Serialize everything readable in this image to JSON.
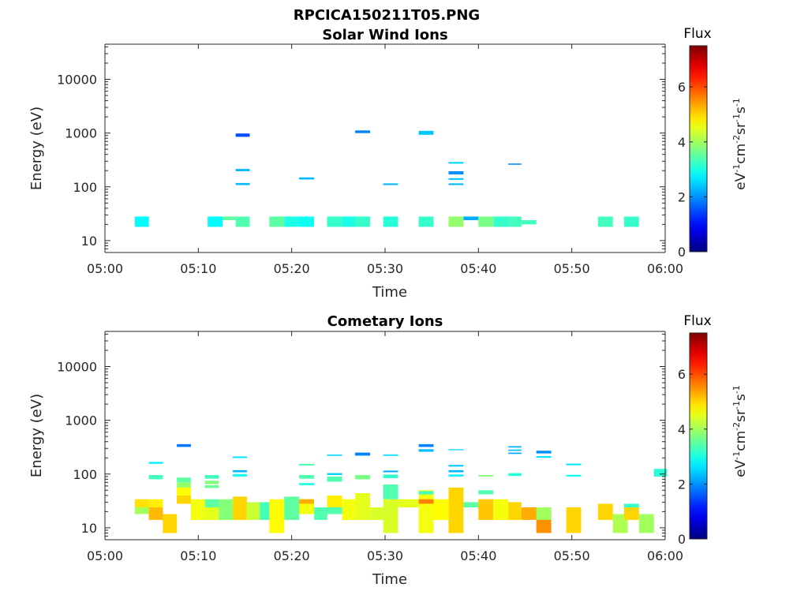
{
  "figure": {
    "title": "RPCICA150211T05.PNG"
  },
  "chart_data": [
    {
      "type": "heatmap",
      "title": "Solar Wind Ions",
      "xlabel": "Time",
      "ylabel": "Energy (eV)",
      "x_ticks": [
        "05:00",
        "05:10",
        "05:20",
        "05:30",
        "05:40",
        "05:50",
        "06:00"
      ],
      "y_ticks": [
        "10",
        "100",
        "1000",
        "10000"
      ],
      "xlim_minutes": [
        0,
        60
      ],
      "ylim": [
        6,
        45000
      ],
      "yscale": "log",
      "colorbar": {
        "title": "Flux",
        "units": "eV-1cm-2sr-1s-1",
        "range": [
          0,
          7.5
        ],
        "ticks": [
          "0",
          "2",
          "4",
          "6"
        ],
        "colormap": "jet"
      },
      "cells": [
        [
          3.2,
          4.7,
          18,
          28,
          2.8
        ],
        [
          11.0,
          12.6,
          18,
          28,
          2.8
        ],
        [
          12.6,
          14.0,
          24,
          28,
          3.5
        ],
        [
          14.0,
          15.5,
          18,
          28,
          3.4
        ],
        [
          17.6,
          19.2,
          18,
          28,
          3.5
        ],
        [
          19.2,
          20.8,
          18,
          28,
          3.0
        ],
        [
          20.8,
          22.4,
          18,
          28,
          2.9
        ],
        [
          23.8,
          25.4,
          18,
          28,
          3.2
        ],
        [
          25.4,
          26.8,
          18,
          28,
          3.0
        ],
        [
          26.8,
          28.4,
          18,
          28,
          3.2
        ],
        [
          29.8,
          31.4,
          18,
          28,
          3.1
        ],
        [
          33.6,
          35.2,
          18,
          28,
          3.2
        ],
        [
          36.8,
          38.4,
          18,
          28,
          3.9
        ],
        [
          38.4,
          40.0,
          24,
          28,
          2.2
        ],
        [
          40.0,
          41.6,
          18,
          28,
          3.7
        ],
        [
          41.6,
          43.2,
          18,
          28,
          3.2
        ],
        [
          43.2,
          44.6,
          18,
          28,
          3.3
        ],
        [
          44.6,
          46.2,
          20,
          24,
          3.3
        ],
        [
          52.8,
          54.4,
          18,
          28,
          3.3
        ],
        [
          55.6,
          57.2,
          18,
          28,
          3.2
        ],
        [
          14.0,
          15.5,
          850,
          980,
          1.5
        ],
        [
          14.0,
          15.5,
          195,
          215,
          2.3
        ],
        [
          14.0,
          15.5,
          108,
          118,
          2.3
        ],
        [
          20.8,
          22.4,
          137,
          150,
          2.3
        ],
        [
          26.8,
          28.4,
          1000,
          1120,
          1.9
        ],
        [
          29.8,
          31.4,
          108,
          116,
          2.3
        ],
        [
          33.6,
          35.2,
          930,
          1100,
          2.4
        ],
        [
          36.8,
          38.4,
          270,
          290,
          2.5
        ],
        [
          36.8,
          38.4,
          170,
          195,
          2.0
        ],
        [
          36.8,
          38.4,
          135,
          145,
          2.4
        ],
        [
          36.8,
          38.4,
          108,
          116,
          2.3
        ],
        [
          43.2,
          44.6,
          258,
          272,
          2.0
        ]
      ]
    },
    {
      "type": "heatmap",
      "title": "Cometary Ions",
      "xlabel": "Time",
      "ylabel": "Energy (eV)",
      "x_ticks": [
        "05:00",
        "05:10",
        "05:20",
        "05:30",
        "05:40",
        "05:50",
        "06:00"
      ],
      "y_ticks": [
        "10",
        "100",
        "1000",
        "10000"
      ],
      "xlim_minutes": [
        0,
        60
      ],
      "ylim": [
        6,
        45000
      ],
      "yscale": "log",
      "colorbar": {
        "title": "Flux",
        "units": "eV-1cm-2sr-1s-1",
        "range": [
          0,
          7.5
        ],
        "ticks": [
          "0",
          "2",
          "4",
          "6"
        ],
        "colormap": "jet"
      },
      "cells": [
        [
          3.2,
          4.7,
          18,
          24,
          4.0
        ],
        [
          3.2,
          4.7,
          24,
          34,
          4.9
        ],
        [
          4.7,
          6.2,
          24,
          34,
          4.8
        ],
        [
          4.7,
          6.2,
          14,
          24,
          5.2
        ],
        [
          6.2,
          7.7,
          8,
          18,
          5.0
        ],
        [
          7.7,
          9.2,
          28,
          40,
          5.0
        ],
        [
          7.7,
          9.2,
          40,
          56,
          4.7
        ],
        [
          7.7,
          9.2,
          56,
          70,
          3.9
        ],
        [
          7.7,
          9.2,
          70,
          86,
          3.5
        ],
        [
          9.2,
          10.7,
          14,
          34,
          4.6
        ],
        [
          10.7,
          12.2,
          14,
          24,
          4.5
        ],
        [
          10.7,
          12.2,
          24,
          34,
          3.5
        ],
        [
          12.2,
          13.7,
          14,
          34,
          3.8
        ],
        [
          13.7,
          15.2,
          14,
          38,
          5.0
        ],
        [
          15.2,
          16.6,
          14,
          30,
          4.3
        ],
        [
          16.6,
          18.1,
          14,
          30,
          3.3
        ],
        [
          17.6,
          19.2,
          8,
          34,
          4.7
        ],
        [
          19.2,
          20.8,
          14,
          38,
          3.5
        ],
        [
          20.8,
          22.4,
          18,
          34,
          4.6
        ],
        [
          20.8,
          22.4,
          28,
          34,
          5.3
        ],
        [
          22.4,
          23.8,
          14,
          24,
          3.4
        ],
        [
          23.8,
          25.4,
          18,
          24,
          3.4
        ],
        [
          23.8,
          25.4,
          24,
          40,
          4.8
        ],
        [
          25.4,
          26.8,
          14,
          34,
          4.6
        ],
        [
          26.8,
          28.4,
          14,
          44,
          4.5
        ],
        [
          28.4,
          29.8,
          14,
          24,
          4.4
        ],
        [
          29.8,
          31.4,
          8,
          34,
          4.4
        ],
        [
          29.8,
          31.4,
          34,
          64,
          3.4
        ],
        [
          31.4,
          33.6,
          24,
          34,
          4.5
        ],
        [
          33.6,
          35.2,
          8,
          50,
          4.6
        ],
        [
          33.6,
          35.2,
          28,
          34,
          5.6
        ],
        [
          35.2,
          36.8,
          14,
          34,
          4.7
        ],
        [
          36.8,
          38.4,
          8,
          56,
          5.0
        ],
        [
          38.4,
          40.0,
          24,
          30,
          3.5
        ],
        [
          40.0,
          41.6,
          14,
          34,
          5.1
        ],
        [
          41.6,
          43.2,
          14,
          34,
          4.6
        ],
        [
          43.2,
          44.6,
          14,
          30,
          5.0
        ],
        [
          44.6,
          46.2,
          14,
          24,
          5.3
        ],
        [
          46.2,
          47.8,
          8,
          24,
          5.5
        ],
        [
          46.2,
          47.8,
          14,
          24,
          4.0
        ],
        [
          49.4,
          51.0,
          8,
          24,
          5.0
        ],
        [
          52.8,
          54.4,
          14,
          28,
          5.0
        ],
        [
          54.4,
          56.0,
          8,
          18,
          4.1
        ],
        [
          55.6,
          57.2,
          14,
          24,
          5.0
        ],
        [
          55.6,
          57.2,
          24,
          28,
          3.2
        ],
        [
          57.2,
          58.8,
          8,
          18,
          4.0
        ],
        [
          58.8,
          60.2,
          90,
          125,
          3.1
        ],
        [
          4.7,
          6.2,
          155,
          168,
          2.7
        ],
        [
          4.7,
          6.2,
          80,
          96,
          3.3
        ],
        [
          7.7,
          9.2,
          320,
          360,
          1.8
        ],
        [
          10.7,
          12.2,
          82,
          96,
          3.3
        ],
        [
          10.7,
          12.2,
          65,
          75,
          3.8
        ],
        [
          10.7,
          12.2,
          55,
          62,
          3.6
        ],
        [
          13.7,
          15.2,
          198,
          212,
          2.6
        ],
        [
          13.7,
          15.2,
          108,
          118,
          2.3
        ],
        [
          13.7,
          15.2,
          90,
          100,
          2.9
        ],
        [
          20.8,
          22.4,
          144,
          155,
          3.4
        ],
        [
          20.8,
          22.4,
          82,
          96,
          3.4
        ],
        [
          20.8,
          22.4,
          62,
          68,
          3.0
        ],
        [
          23.8,
          25.4,
          218,
          230,
          2.5
        ],
        [
          23.8,
          25.4,
          96,
          104,
          2.5
        ],
        [
          23.8,
          25.4,
          72,
          90,
          3.4
        ],
        [
          26.8,
          28.4,
          220,
          250,
          1.9
        ],
        [
          26.8,
          28.4,
          80,
          96,
          3.7
        ],
        [
          29.8,
          31.4,
          218,
          232,
          2.6
        ],
        [
          29.8,
          31.4,
          108,
          116,
          2.2
        ],
        [
          29.8,
          31.4,
          84,
          98,
          3.2
        ],
        [
          33.6,
          35.2,
          320,
          360,
          1.9
        ],
        [
          33.6,
          35.2,
          260,
          290,
          2.3
        ],
        [
          33.6,
          35.2,
          42,
          48,
          3.3
        ],
        [
          36.8,
          38.4,
          278,
          290,
          2.5
        ],
        [
          36.8,
          38.4,
          138,
          148,
          2.4
        ],
        [
          36.8,
          38.4,
          108,
          118,
          2.3
        ],
        [
          36.8,
          38.4,
          90,
          98,
          2.7
        ],
        [
          40.0,
          41.6,
          90,
          96,
          3.8
        ],
        [
          40.0,
          41.6,
          42,
          50,
          3.4
        ],
        [
          43.2,
          44.6,
          310,
          330,
          2.3
        ],
        [
          43.2,
          44.6,
          270,
          285,
          2.3
        ],
        [
          43.2,
          44.6,
          236,
          250,
          2.2
        ],
        [
          43.2,
          44.6,
          92,
          104,
          3.1
        ],
        [
          46.2,
          47.8,
          242,
          272,
          2.0
        ],
        [
          46.2,
          47.8,
          200,
          215,
          2.6
        ],
        [
          49.4,
          51.0,
          146,
          156,
          2.6
        ],
        [
          49.4,
          51.0,
          90,
          97,
          2.9
        ]
      ]
    }
  ]
}
